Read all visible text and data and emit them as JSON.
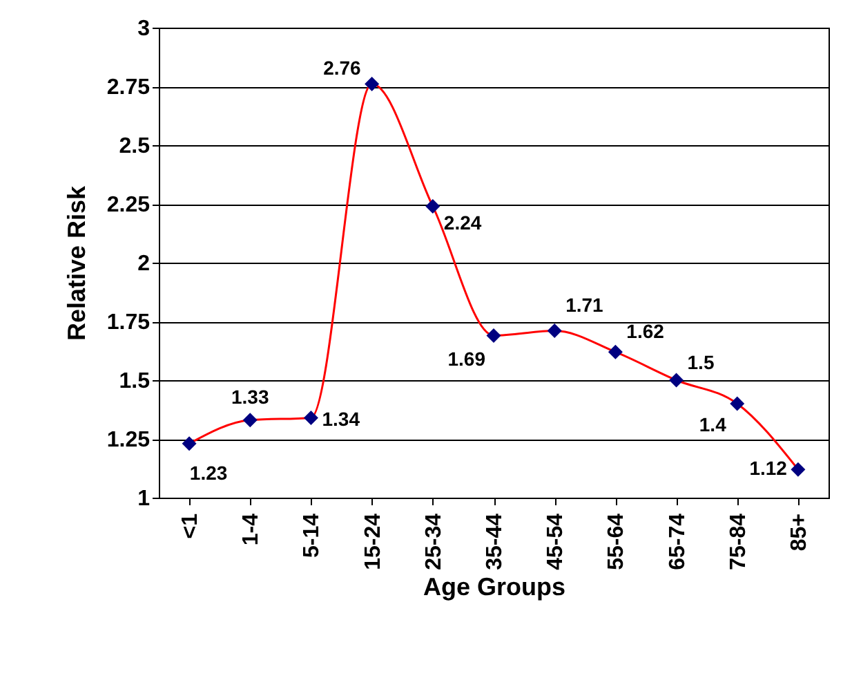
{
  "chart_data": {
    "type": "line",
    "xlabel": "Age Groups",
    "ylabel": "Relative Risk",
    "categories": [
      "<1",
      "1-4",
      "5-14",
      "15-24",
      "25-34",
      "35-44",
      "45-54",
      "55-64",
      "65-74",
      "75-84",
      "85+"
    ],
    "series": [
      {
        "color": "#ff0000",
        "values": [
          1.23,
          1.33,
          1.34,
          2.76,
          2.24,
          1.69,
          1.71,
          1.62,
          1.5,
          1.4,
          1.12
        ]
      }
    ],
    "ylim": [
      1,
      3
    ],
    "yticks": [
      1,
      1.25,
      1.5,
      1.75,
      2,
      2.25,
      2.5,
      2.75,
      3
    ],
    "grid": "y",
    "marker": "diamond",
    "line_style": "solid",
    "data_labels": true
  }
}
